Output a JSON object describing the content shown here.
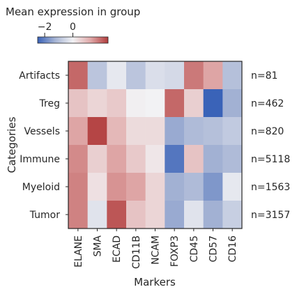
{
  "chart_data": {
    "type": "heatmap",
    "title": "",
    "xlabel": "Markers",
    "ylabel": "Categories",
    "colorbar": {
      "title": "Mean expression in group",
      "ticks": [
        "−2",
        "0"
      ],
      "tick_values": [
        -2,
        0
      ],
      "range": [
        -2.5,
        2.5
      ],
      "colormap": "vlag",
      "position": "top-left"
    },
    "x": [
      "ELANE",
      "SMA",
      "ECAD",
      "CD11B",
      "NCAM",
      "FOXP3",
      "CD45",
      "CD57",
      "CD16"
    ],
    "y": [
      "Artifacts",
      "Treg",
      "Vessels",
      "Immune",
      "Myeloid",
      "Tumor"
    ],
    "counts": [
      "n=81",
      "n=462",
      "n=820",
      "n=5118",
      "n=1563",
      "n=3157"
    ],
    "values": [
      [
        2.0,
        -0.9,
        -0.2,
        -0.9,
        -0.4,
        -0.5,
        1.8,
        1.3,
        -1.0
      ],
      [
        0.8,
        0.5,
        0.7,
        0.05,
        0.0,
        2.0,
        0.6,
        -2.5,
        -1.3
      ],
      [
        1.3,
        2.4,
        1.0,
        0.4,
        0.4,
        -1.4,
        -1.1,
        -1.0,
        -0.8
      ],
      [
        1.6,
        0.6,
        1.3,
        0.7,
        0.2,
        -2.2,
        0.8,
        -1.3,
        -1.1
      ],
      [
        1.7,
        0.3,
        1.5,
        1.3,
        0.5,
        -1.3,
        -1.1,
        -1.7,
        -0.2
      ],
      [
        1.7,
        -0.3,
        2.2,
        0.8,
        0.5,
        -1.4,
        -0.3,
        -1.3,
        -0.7
      ]
    ]
  }
}
